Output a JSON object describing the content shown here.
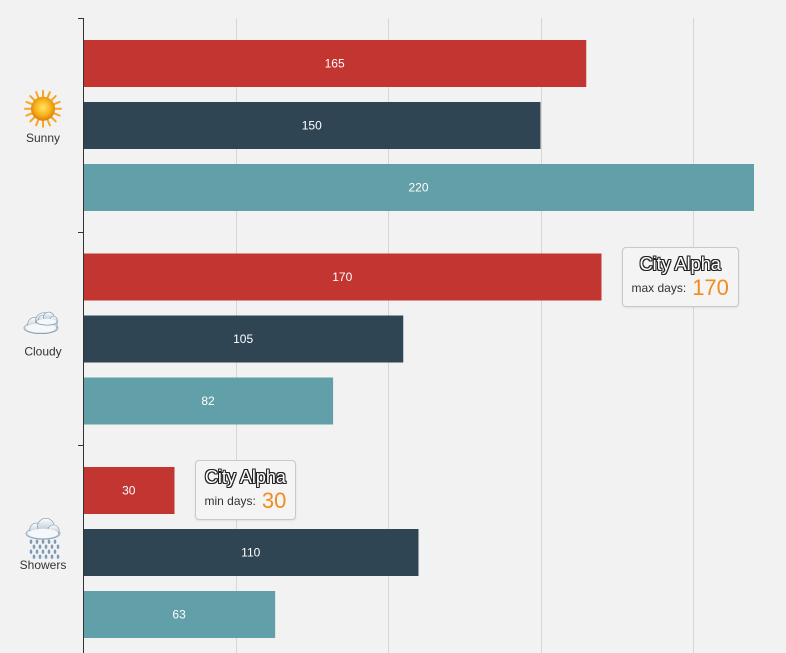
{
  "chart_data": {
    "type": "bar",
    "orientation": "horizontal",
    "categories": [
      "Sunny",
      "Cloudy",
      "Showers"
    ],
    "category_icons": [
      "sun-icon",
      "cloud-icon",
      "rain-cloud-icon"
    ],
    "series": [
      {
        "color": "#c23531",
        "values": [
          165,
          170,
          30
        ]
      },
      {
        "color": "#2f4554",
        "values": [
          150,
          105,
          110
        ]
      },
      {
        "color": "#61a0a8",
        "values": [
          220,
          82,
          63
        ]
      }
    ],
    "xlim": [
      0,
      230
    ],
    "x_grid_step": 50,
    "grid": true,
    "show_x_tick_labels": false,
    "data_labels": true,
    "annotations": [
      {
        "type": "max",
        "category": "Cloudy",
        "series_index": 0,
        "title": "City Alpha",
        "text": "max days:",
        "value": "170"
      },
      {
        "type": "min",
        "category": "Showers",
        "series_index": 0,
        "title": "City Alpha",
        "text": "min days:",
        "value": "30"
      }
    ]
  }
}
